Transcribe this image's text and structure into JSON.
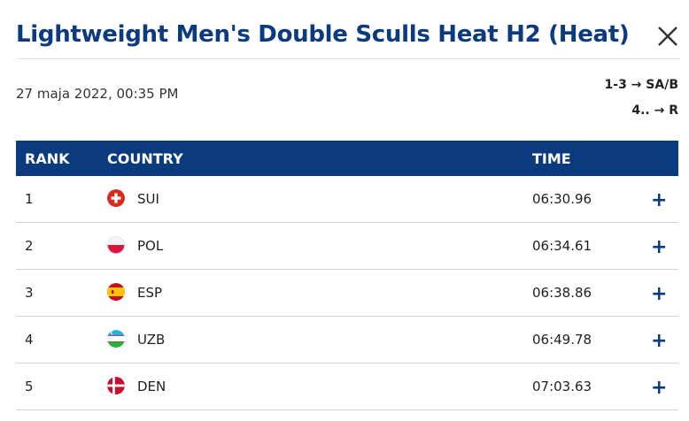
{
  "header": {
    "title": "Lightweight Men's Double Sculls Heat H2 (Heat)",
    "close_icon": "close-icon"
  },
  "info": {
    "datetime": "27 maja 2022, 00:35 PM",
    "progression": [
      "1-3 → SA/B",
      "4.. → R"
    ]
  },
  "table": {
    "columns": {
      "rank": "RANK",
      "country": "COUNTRY",
      "time": "TIME"
    },
    "rows": [
      {
        "rank": "1",
        "country": "SUI",
        "time": "06:30.96",
        "flag_icon": "switzerland-flag-icon"
      },
      {
        "rank": "2",
        "country": "POL",
        "time": "06:34.61",
        "flag_icon": "poland-flag-icon"
      },
      {
        "rank": "3",
        "country": "ESP",
        "time": "06:38.86",
        "flag_icon": "spain-flag-icon"
      },
      {
        "rank": "4",
        "country": "UZB",
        "time": "06:49.78",
        "flag_icon": "uzbekistan-flag-icon"
      },
      {
        "rank": "5",
        "country": "DEN",
        "time": "07:03.63",
        "flag_icon": "denmark-flag-icon"
      }
    ],
    "expand_label": "+"
  },
  "colors": {
    "primary": "#0b3a7e",
    "divider": "#d4d4d4"
  }
}
